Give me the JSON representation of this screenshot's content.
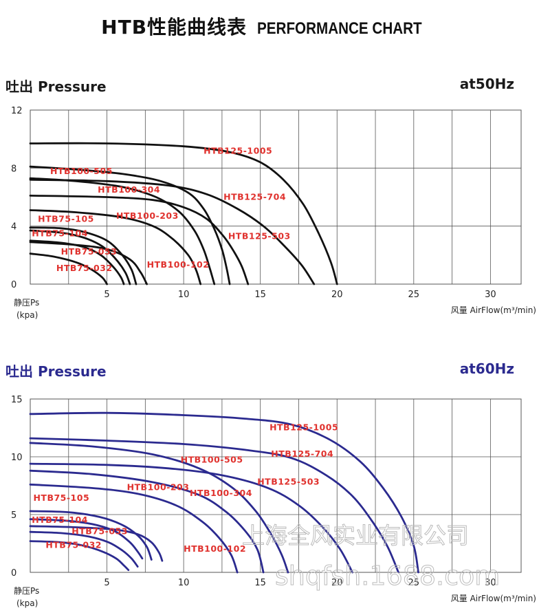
{
  "page": {
    "title_zh": "HTB性能曲线表",
    "title_en": "PERFORMANCE CHART",
    "watermark_company": "上海全风实业有限公司",
    "watermark_url": "shqfsh.1688.com"
  },
  "colors": {
    "hz50_curve": "#111111",
    "hz60_curve": "#2b2a8f",
    "curve_label": "#e0322e",
    "grid": "#555555"
  },
  "chart_data": [
    {
      "type": "line",
      "section_label": "吐出 Pressure",
      "frequency_label": "at50Hz",
      "ylabel_line1": "静压Ps",
      "ylabel_line2": "(kpa)",
      "xlabel": "风量 AirFlow(m³/min)",
      "xlim": [
        0,
        32
      ],
      "ylim": [
        0,
        12
      ],
      "xticks": [
        5,
        10,
        15,
        20,
        25,
        30
      ],
      "yticks": [
        0,
        4,
        8,
        12
      ],
      "grid": true,
      "series": [
        {
          "name": "HTB125-1005",
          "label_at": [
            11.3,
            9.0
          ],
          "points": [
            [
              0,
              9.7
            ],
            [
              5,
              9.7
            ],
            [
              10,
              9.5
            ],
            [
              13,
              9.1
            ],
            [
              15,
              8.4
            ],
            [
              16.5,
              7.2
            ],
            [
              17.8,
              5.5
            ],
            [
              18.8,
              3.5
            ],
            [
              19.6,
              1.5
            ],
            [
              20.0,
              0
            ]
          ]
        },
        {
          "name": "HTB125-704",
          "label_at": [
            12.6,
            5.8
          ],
          "points": [
            [
              0,
              7.2
            ],
            [
              5,
              7.1
            ],
            [
              9,
              6.8
            ],
            [
              11.5,
              6.2
            ],
            [
              13.5,
              5.2
            ],
            [
              15.2,
              4.0
            ],
            [
              16.5,
              2.7
            ],
            [
              17.7,
              1.3
            ],
            [
              18.5,
              0
            ]
          ]
        },
        {
          "name": "HTB125-503",
          "label_at": [
            12.9,
            3.1
          ],
          "points": [
            [
              0,
              6.1
            ],
            [
              5,
              6.0
            ],
            [
              8,
              5.8
            ],
            [
              10,
              5.3
            ],
            [
              11.5,
              4.5
            ],
            [
              12.6,
              3.3
            ],
            [
              13.3,
              2.2
            ],
            [
              13.8,
              1.2
            ],
            [
              14.2,
              0
            ]
          ]
        },
        {
          "name": "HTB100-505",
          "label_at": [
            1.3,
            7.6
          ],
          "points": [
            [
              0,
              8.1
            ],
            [
              3,
              7.9
            ],
            [
              6,
              7.6
            ],
            [
              8.5,
              7.1
            ],
            [
              10.3,
              6.3
            ],
            [
              11.3,
              5.2
            ],
            [
              12.0,
              3.8
            ],
            [
              12.5,
              2.4
            ],
            [
              12.8,
              1.1
            ],
            [
              13.0,
              0
            ]
          ]
        },
        {
          "name": "HTB100-304",
          "label_at": [
            4.4,
            6.3
          ],
          "points": [
            [
              0,
              7.3
            ],
            [
              3,
              7.1
            ],
            [
              6,
              6.7
            ],
            [
              8.2,
              6.0
            ],
            [
              9.7,
              5.0
            ],
            [
              10.7,
              3.7
            ],
            [
              11.3,
              2.4
            ],
            [
              11.7,
              1.1
            ],
            [
              12.0,
              0
            ]
          ]
        },
        {
          "name": "HTB100-203",
          "label_at": [
            5.6,
            4.5
          ],
          "points": [
            [
              0,
              5.1
            ],
            [
              3,
              4.95
            ],
            [
              6,
              4.6
            ],
            [
              8,
              4.0
            ],
            [
              9.3,
              3.1
            ],
            [
              10.3,
              2.0
            ],
            [
              10.8,
              1.0
            ],
            [
              11.1,
              0
            ]
          ]
        },
        {
          "name": "HTB100-102",
          "label_at": [
            7.6,
            1.15
          ],
          "points": [
            [
              0,
              2.9
            ],
            [
              3,
              2.7
            ],
            [
              5,
              2.4
            ],
            [
              6.5,
              1.7
            ],
            [
              7.2,
              0.8
            ],
            [
              7.6,
              0
            ]
          ]
        },
        {
          "name": "HTB75-105",
          "label_at": [
            0.5,
            4.3
          ],
          "points": [
            [
              0,
              3.9
            ],
            [
              2,
              3.85
            ],
            [
              3.5,
              3.6
            ],
            [
              5.0,
              3.0
            ],
            [
              6.0,
              2.0
            ],
            [
              6.6,
              1.0
            ],
            [
              6.9,
              0
            ]
          ]
        },
        {
          "name": "HTB75-104",
          "label_at": [
            0.1,
            3.3
          ],
          "points": [
            [
              0,
              3.7
            ],
            [
              2,
              3.55
            ],
            [
              3.5,
              3.2
            ],
            [
              4.7,
              2.6
            ],
            [
              5.6,
              1.7
            ],
            [
              6.2,
              0.8
            ],
            [
              6.5,
              0
            ]
          ]
        },
        {
          "name": "HTB75-053",
          "label_at": [
            2.0,
            2.05
          ],
          "points": [
            [
              0,
              3.0
            ],
            [
              2,
              2.85
            ],
            [
              3.5,
              2.55
            ],
            [
              4.6,
              2.0
            ],
            [
              5.4,
              1.2
            ],
            [
              5.9,
              0.5
            ],
            [
              6.1,
              0
            ]
          ]
        },
        {
          "name": "HTB75-032",
          "label_at": [
            1.7,
            0.9
          ],
          "points": [
            [
              0,
              2.1
            ],
            [
              1.5,
              1.9
            ],
            [
              3,
              1.5
            ],
            [
              4.0,
              1.0
            ],
            [
              4.7,
              0.45
            ],
            [
              5.0,
              0
            ]
          ]
        }
      ]
    },
    {
      "type": "line",
      "section_label": "吐出 Pressure",
      "frequency_label": "at60Hz",
      "ylabel_line1": "静压Ps",
      "ylabel_line2": "(kpa)",
      "xlabel": "风量 AirFlow(m³/min)",
      "xlim": [
        0,
        32
      ],
      "ylim": [
        0,
        15
      ],
      "xticks": [
        5,
        10,
        15,
        20,
        25,
        30
      ],
      "yticks": [
        0,
        5,
        10,
        15
      ],
      "grid": true,
      "series": [
        {
          "name": "HTB125-1005",
          "label_at": [
            15.6,
            12.3
          ],
          "points": [
            [
              0,
              13.7
            ],
            [
              5,
              13.8
            ],
            [
              10,
              13.6
            ],
            [
              14,
              13.3
            ],
            [
              17,
              12.8
            ],
            [
              19.5,
              11.5
            ],
            [
              21.5,
              9.6
            ],
            [
              23,
              7.3
            ],
            [
              24.2,
              4.8
            ],
            [
              25.0,
              2.3
            ],
            [
              25.3,
              0
            ]
          ]
        },
        {
          "name": "HTB125-704",
          "label_at": [
            15.7,
            10.0
          ],
          "points": [
            [
              0,
              11.6
            ],
            [
              5,
              11.4
            ],
            [
              10,
              11.1
            ],
            [
              14,
              10.6
            ],
            [
              17,
              9.9
            ],
            [
              19.3,
              8.4
            ],
            [
              21,
              6.6
            ],
            [
              22.3,
              4.4
            ],
            [
              23.3,
              2.2
            ],
            [
              24.0,
              0
            ]
          ]
        },
        {
          "name": "HTB125-503",
          "label_at": [
            14.8,
            7.6
          ],
          "points": [
            [
              0,
              9.4
            ],
            [
              5,
              9.3
            ],
            [
              9,
              9.0
            ],
            [
              12.5,
              8.4
            ],
            [
              15.5,
              7.3
            ],
            [
              17.5,
              5.8
            ],
            [
              19.0,
              4.0
            ],
            [
              20.2,
              2.0
            ],
            [
              21.0,
              0
            ]
          ]
        },
        {
          "name": "HTB100-505",
          "label_at": [
            9.8,
            9.5
          ],
          "points": [
            [
              0,
              11.2
            ],
            [
              4,
              10.9
            ],
            [
              8,
              10.2
            ],
            [
              11,
              9.0
            ],
            [
              13.2,
              7.3
            ],
            [
              14.7,
              5.3
            ],
            [
              15.7,
              3.3
            ],
            [
              16.4,
              1.5
            ],
            [
              16.8,
              0
            ]
          ]
        },
        {
          "name": "HTB100-304",
          "label_at": [
            10.4,
            6.6
          ],
          "points": [
            [
              0,
              8.8
            ],
            [
              4,
              8.5
            ],
            [
              8,
              7.8
            ],
            [
              11,
              6.7
            ],
            [
              12.8,
              5.2
            ],
            [
              14.0,
              3.6
            ],
            [
              14.8,
              2.0
            ],
            [
              15.2,
              0
            ]
          ]
        },
        {
          "name": "HTB100-203",
          "label_at": [
            6.3,
            7.1
          ],
          "points": [
            [
              0,
              7.6
            ],
            [
              4,
              7.3
            ],
            [
              7,
              6.8
            ],
            [
              9.5,
              5.8
            ],
            [
              11.2,
              4.4
            ],
            [
              12.3,
              3.0
            ],
            [
              13.1,
              1.5
            ],
            [
              13.5,
              0
            ]
          ]
        },
        {
          "name": "HTB100-102",
          "label_at": [
            10.0,
            1.8
          ],
          "points": [
            [
              0,
              4.0
            ],
            [
              3,
              3.9
            ],
            [
              5.5,
              3.7
            ],
            [
              7.0,
              3.3
            ],
            [
              7.9,
              2.6
            ],
            [
              8.4,
              1.7
            ],
            [
              8.6,
              1.0
            ]
          ]
        },
        {
          "name": "HTB75-105",
          "label_at": [
            0.2,
            6.2
          ],
          "points": [
            [
              0,
              5.3
            ],
            [
              2.5,
              5.2
            ],
            [
              4.5,
              4.8
            ],
            [
              6.0,
              4.1
            ],
            [
              7.0,
              3.2
            ],
            [
              7.6,
              2.2
            ],
            [
              7.9,
              1.1
            ]
          ]
        },
        {
          "name": "HTB75-104",
          "label_at": [
            0.1,
            4.3
          ],
          "points": [
            [
              0,
              4.6
            ],
            [
              2.5,
              4.45
            ],
            [
              4.3,
              4.1
            ],
            [
              5.6,
              3.5
            ],
            [
              6.5,
              2.6
            ],
            [
              7.0,
              1.8
            ],
            [
              7.3,
              1.2
            ]
          ]
        },
        {
          "name": "HTB75-053",
          "label_at": [
            2.7,
            3.3
          ],
          "points": [
            [
              0,
              3.5
            ],
            [
              2,
              3.4
            ],
            [
              3.8,
              3.1
            ],
            [
              5.1,
              2.6
            ],
            [
              6.0,
              1.9
            ],
            [
              6.6,
              1.2
            ],
            [
              7.0,
              0.5
            ]
          ]
        },
        {
          "name": "HTB75-032",
          "label_at": [
            1.0,
            2.1
          ],
          "points": [
            [
              0,
              2.7
            ],
            [
              2,
              2.6
            ],
            [
              3.5,
              2.3
            ],
            [
              4.7,
              1.8
            ],
            [
              5.6,
              1.2
            ],
            [
              6.1,
              0.6
            ],
            [
              6.4,
              0.2
            ]
          ]
        }
      ]
    }
  ]
}
